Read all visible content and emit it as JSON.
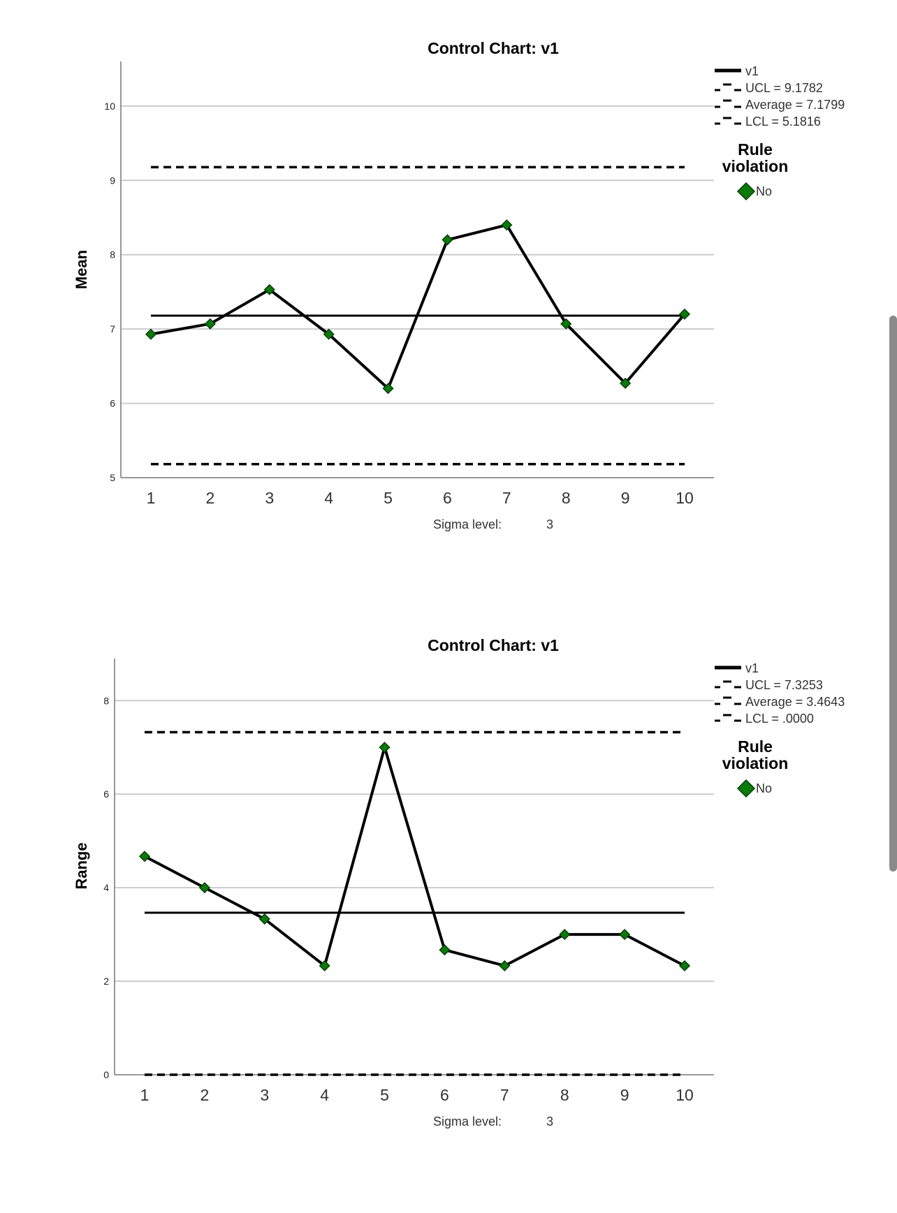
{
  "colors": {
    "marker": "#0a7a0a",
    "line": "#000000",
    "grid": "#cccccc"
  },
  "chart_data": [
    {
      "type": "line",
      "title": "Control Chart: v1",
      "ylabel": "Mean",
      "x": [
        1,
        2,
        3,
        4,
        5,
        6,
        7,
        8,
        9,
        10
      ],
      "series": [
        {
          "name": "v1",
          "values": [
            6.93,
            7.07,
            7.53,
            6.93,
            6.2,
            8.2,
            8.4,
            7.07,
            6.27,
            7.2
          ]
        }
      ],
      "ucl": 9.1782,
      "average": 7.1799,
      "lcl": 5.1816,
      "ylim": [
        5,
        10.6
      ],
      "yticks": [
        "5",
        "6",
        "7",
        "8",
        "9",
        "10"
      ],
      "ytick_values": [
        5,
        6,
        7,
        8,
        9,
        10
      ],
      "xticks": [
        "1",
        "2",
        "3",
        "4",
        "5",
        "6",
        "7",
        "8",
        "9",
        "10"
      ],
      "sigma_label": "Sigma level:",
      "sigma_value": "3",
      "legend": [
        "v1",
        "UCL = 9.1782",
        "Average = 7.1799",
        "LCL = 5.1816"
      ],
      "rule_header": [
        "Rule",
        "violation"
      ],
      "rule_item": "No",
      "grid": true,
      "legend_position": "top-right"
    },
    {
      "type": "line",
      "title": "Control Chart: v1",
      "ylabel": "Range",
      "x": [
        1,
        2,
        3,
        4,
        5,
        6,
        7,
        8,
        9,
        10
      ],
      "series": [
        {
          "name": "v1",
          "values": [
            4.67,
            4.0,
            3.33,
            2.33,
            7.0,
            2.67,
            2.33,
            3.0,
            3.0,
            2.33
          ]
        }
      ],
      "ucl": 7.3253,
      "average": 3.4643,
      "lcl": 0,
      "ylim": [
        0,
        8.9
      ],
      "yticks": [
        "0",
        "2",
        "4",
        "6",
        "8"
      ],
      "ytick_values": [
        0,
        2,
        4,
        6,
        8
      ],
      "xticks": [
        "1",
        "2",
        "3",
        "4",
        "5",
        "6",
        "7",
        "8",
        "9",
        "10"
      ],
      "sigma_label": "Sigma level:",
      "sigma_value": "3",
      "legend": [
        "v1",
        "UCL = 7.3253",
        "Average = 3.4643",
        "LCL = .0000"
      ],
      "rule_header": [
        "Rule",
        "violation"
      ],
      "rule_item": "No",
      "grid": true,
      "legend_position": "top-right"
    }
  ]
}
